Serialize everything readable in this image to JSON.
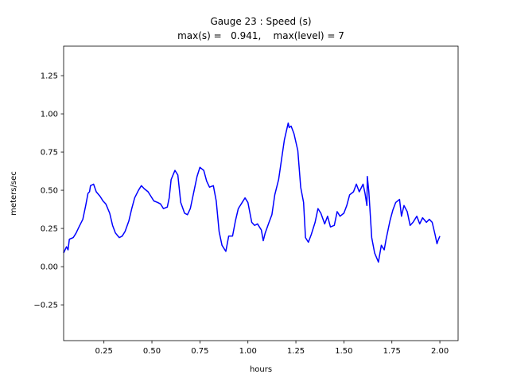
{
  "chart_data": {
    "type": "line",
    "title": "Gauge 23 : Speed (s)",
    "subtitle": "max(s) =   0.941,    max(level) = 7",
    "x_label": "hours",
    "y_label": "meters/sec",
    "color": "#0000ff",
    "x": [
      0.04,
      0.055,
      0.063,
      0.07,
      0.09,
      0.105,
      0.12,
      0.14,
      0.155,
      0.167,
      0.175,
      0.18,
      0.196,
      0.21,
      0.23,
      0.245,
      0.26,
      0.28,
      0.295,
      0.31,
      0.33,
      0.345,
      0.36,
      0.38,
      0.395,
      0.41,
      0.43,
      0.445,
      0.46,
      0.48,
      0.495,
      0.51,
      0.53,
      0.545,
      0.56,
      0.58,
      0.59,
      0.6,
      0.62,
      0.635,
      0.65,
      0.67,
      0.685,
      0.7,
      0.72,
      0.735,
      0.75,
      0.77,
      0.785,
      0.8,
      0.82,
      0.835,
      0.85,
      0.865,
      0.885,
      0.9,
      0.92,
      0.935,
      0.95,
      0.97,
      0.985,
      1.0,
      1.02,
      1.035,
      1.05,
      1.07,
      1.08,
      1.09,
      1.11,
      1.125,
      1.14,
      1.16,
      1.175,
      1.19,
      1.21,
      1.215,
      1.225,
      1.24,
      1.26,
      1.275,
      1.29,
      1.3,
      1.315,
      1.33,
      1.35,
      1.365,
      1.38,
      1.4,
      1.415,
      1.43,
      1.45,
      1.465,
      1.48,
      1.5,
      1.515,
      1.53,
      1.55,
      1.565,
      1.58,
      1.6,
      1.61,
      1.62,
      1.622,
      1.63,
      1.645,
      1.66,
      1.68,
      1.695,
      1.71,
      1.72,
      1.74,
      1.755,
      1.77,
      1.79,
      1.8,
      1.813,
      1.83,
      1.845,
      1.86,
      1.88,
      1.895,
      1.91,
      1.93,
      1.945,
      1.96,
      1.975,
      1.985,
      1.99,
      2.0
    ],
    "values": [
      0.09,
      0.13,
      0.11,
      0.18,
      0.19,
      0.22,
      0.26,
      0.31,
      0.4,
      0.48,
      0.49,
      0.53,
      0.54,
      0.49,
      0.46,
      0.43,
      0.41,
      0.35,
      0.27,
      0.22,
      0.19,
      0.2,
      0.23,
      0.3,
      0.38,
      0.45,
      0.5,
      0.53,
      0.51,
      0.49,
      0.46,
      0.43,
      0.42,
      0.41,
      0.38,
      0.39,
      0.45,
      0.57,
      0.63,
      0.6,
      0.42,
      0.35,
      0.34,
      0.38,
      0.5,
      0.59,
      0.65,
      0.63,
      0.56,
      0.52,
      0.53,
      0.43,
      0.23,
      0.14,
      0.1,
      0.2,
      0.2,
      0.3,
      0.38,
      0.42,
      0.45,
      0.42,
      0.29,
      0.27,
      0.28,
      0.24,
      0.17,
      0.22,
      0.29,
      0.34,
      0.47,
      0.57,
      0.7,
      0.83,
      0.94,
      0.91,
      0.92,
      0.87,
      0.76,
      0.52,
      0.42,
      0.19,
      0.16,
      0.21,
      0.29,
      0.38,
      0.35,
      0.28,
      0.33,
      0.26,
      0.27,
      0.36,
      0.33,
      0.35,
      0.4,
      0.47,
      0.49,
      0.54,
      0.49,
      0.54,
      0.48,
      0.4,
      0.59,
      0.49,
      0.19,
      0.09,
      0.03,
      0.14,
      0.11,
      0.18,
      0.3,
      0.37,
      0.42,
      0.44,
      0.33,
      0.4,
      0.36,
      0.27,
      0.29,
      0.33,
      0.28,
      0.32,
      0.29,
      0.31,
      0.29,
      0.21,
      0.15,
      0.17,
      0.2
    ],
    "xlim": [
      0.04,
      2.095
    ],
    "ylim": [
      -0.484,
      1.443
    ],
    "xticks": [
      0.25,
      {
        "value": 0.5,
        "label": "0.50"
      },
      0.75,
      {
        "value": 1,
        "label": "1.00"
      },
      1.25,
      {
        "value": 1.5,
        "label": "1.50"
      },
      1.75,
      {
        "value": 2,
        "label": "2.00"
      }
    ],
    "yticks": [
      {
        "value": -0.25,
        "label": "−0.25"
      },
      {
        "value": 0,
        "label": "0.00"
      },
      0.25,
      {
        "value": 0.5,
        "label": "0.50"
      },
      0.75,
      {
        "value": 1,
        "label": "1.00"
      },
      1.25
    ]
  }
}
